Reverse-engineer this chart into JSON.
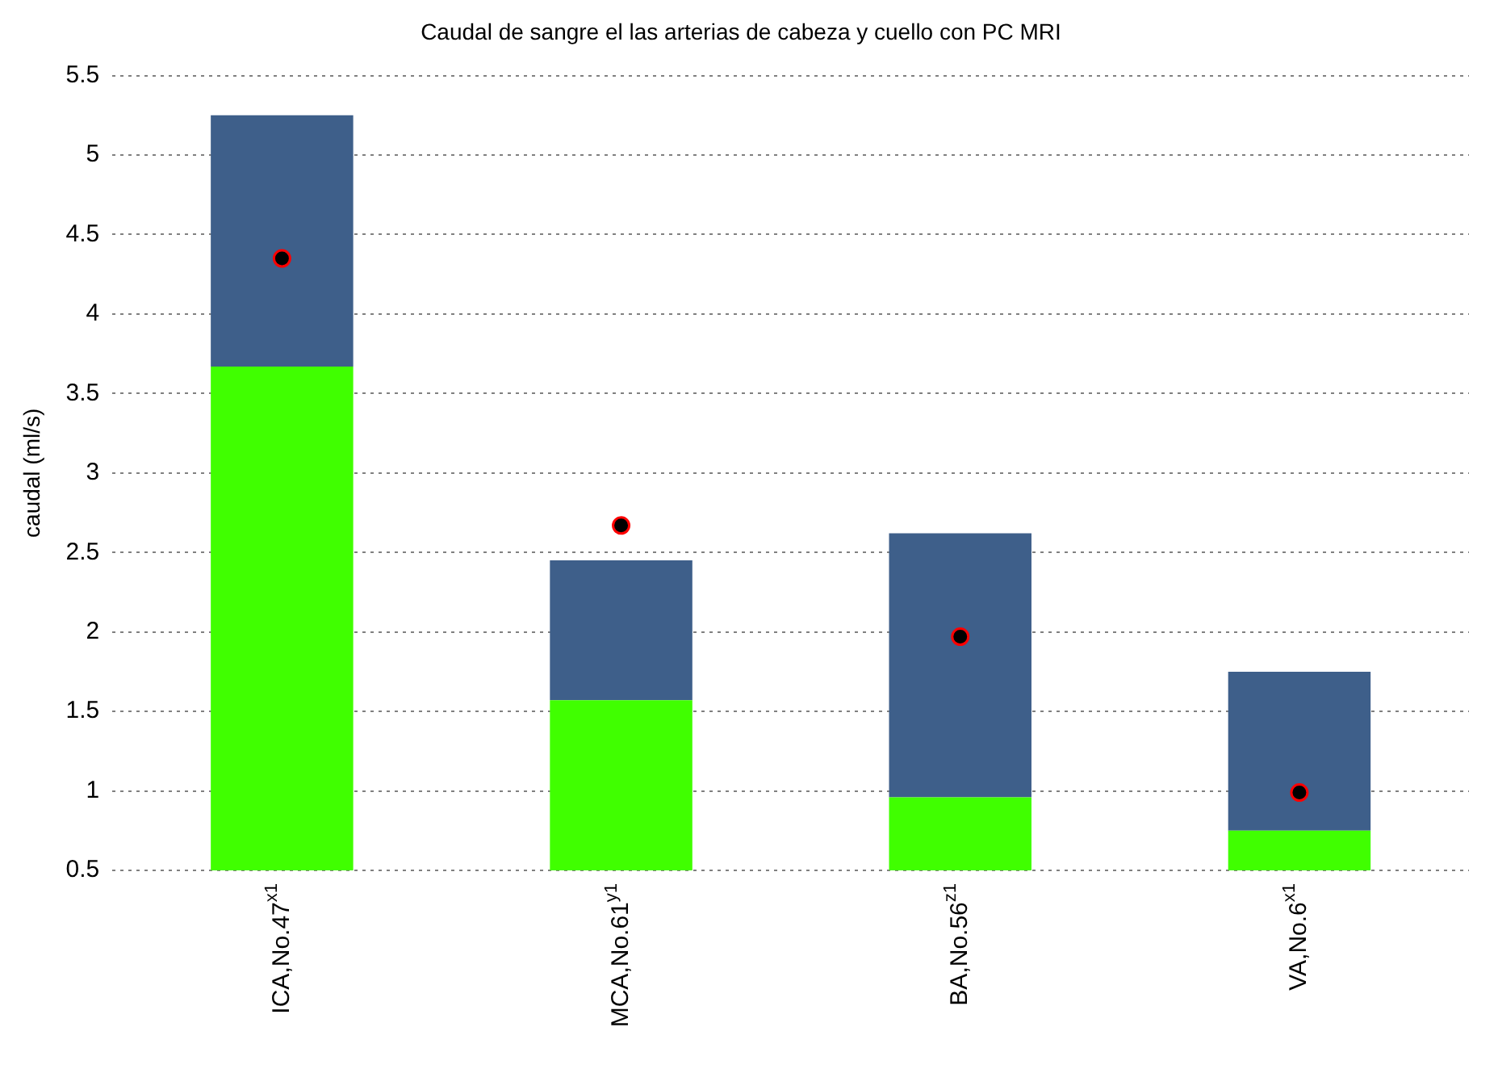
{
  "chart_data": {
    "type": "bar",
    "title": "Caudal de sangre el las arterias de cabeza y cuello con PC MRI",
    "ylabel": "caudal (ml/s)",
    "categories": [
      "ICA,No.47$^{x1}$",
      "MCA,No.61$^{y1}$",
      "BA,No.56$^{z1}$",
      "VA,No.6$^{x1}$"
    ],
    "stacked": true,
    "ylim": [
      0.5,
      5.5
    ],
    "yticks": [
      0.5,
      1,
      1.5,
      2,
      2.5,
      3,
      3.5,
      4,
      4.5,
      5,
      5.5
    ],
    "grid": "y",
    "legend": false,
    "series": [
      {
        "type": "bar",
        "color": "#40ff00",
        "values": [
          3.67,
          1.57,
          0.96,
          0.75
        ]
      },
      {
        "type": "bar",
        "color": "#3e5f8a",
        "values": [
          1.58,
          0.88,
          1.66,
          1.0
        ]
      },
      {
        "type": "scatter",
        "color": "#000000",
        "marker": "circle",
        "x": [
          "ICA,No.47$^{x1}$",
          "MCA,No.61$^{y1}$",
          "BA,No.56$^{z1}$",
          "VA,No.6$^{x1}$"
        ],
        "values": [
          4.35,
          2.67,
          1.97,
          0.99
        ]
      }
    ]
  }
}
